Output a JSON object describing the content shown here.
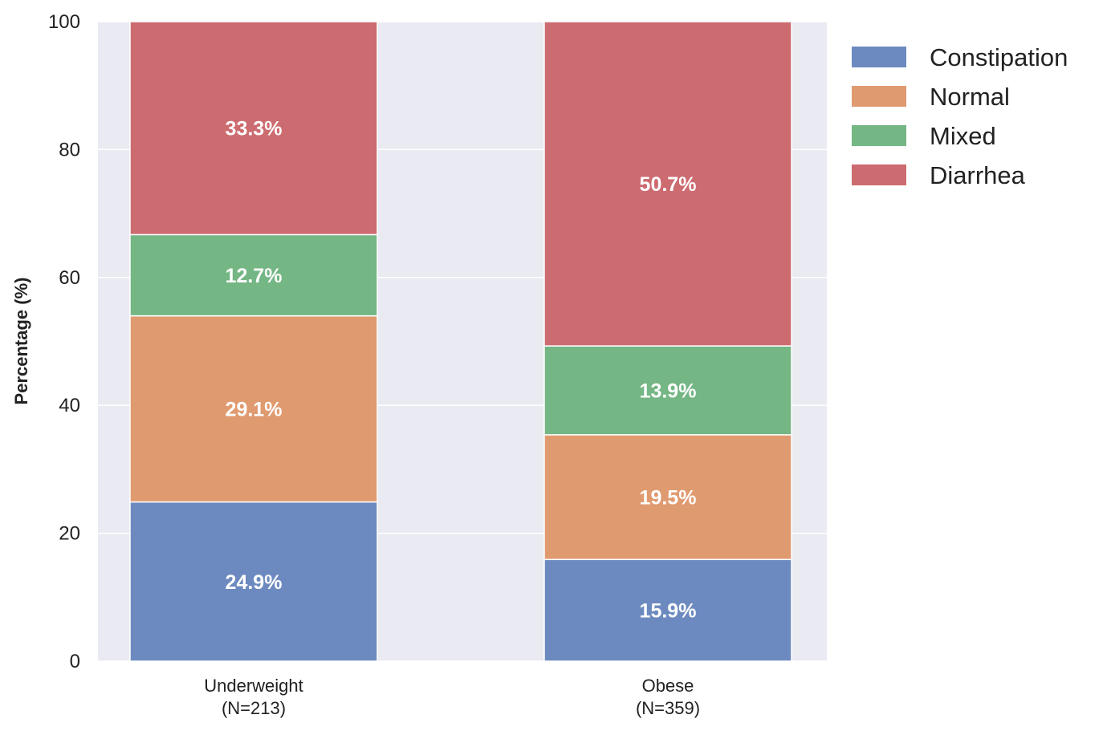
{
  "chart_data": {
    "type": "bar",
    "stacked": true,
    "categories": [
      [
        "Underweight",
        "(N=213)"
      ],
      [
        "Obese",
        "(N=359)"
      ]
    ],
    "series": [
      {
        "name": "Constipation",
        "color": "#6c8abf",
        "values": [
          24.9,
          15.9
        ],
        "labels": [
          "24.9%",
          "15.9%"
        ]
      },
      {
        "name": "Normal",
        "color": "#e09a70",
        "values": [
          29.1,
          19.5
        ],
        "labels": [
          "29.1%",
          "19.5%"
        ]
      },
      {
        "name": "Mixed",
        "color": "#74b684",
        "values": [
          12.7,
          13.9
        ],
        "labels": [
          "12.7%",
          "13.9%"
        ]
      },
      {
        "name": "Diarrhea",
        "color": "#cc6b70",
        "values": [
          33.3,
          50.7
        ],
        "labels": [
          "33.3%",
          "50.7%"
        ]
      }
    ],
    "ylabel": "Percentage (%)",
    "ylim": [
      0,
      100
    ],
    "yticks": [
      0,
      20,
      40,
      60,
      80,
      100
    ],
    "grid": true,
    "legend_position": "upper-right-outside",
    "plot_background": "#eaeaf2",
    "grid_color": "#ffffff"
  }
}
